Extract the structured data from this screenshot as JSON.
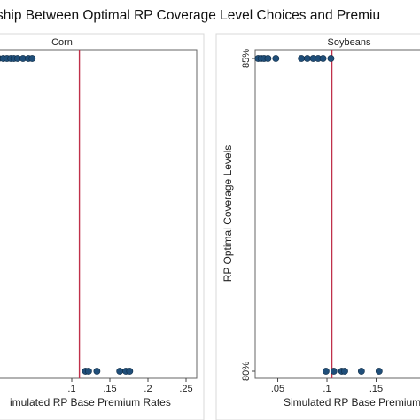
{
  "colors": {
    "point": "#1f4e79",
    "threshold_line": "#c0304a",
    "frame": "#666666"
  },
  "chart_data": {
    "type": "scatter",
    "title": "Relationship Between Optimal RP Coverage Level Choices and Premium Rates",
    "title_visible_text": "ship Between Optimal RP Coverage Level Choices and Premiu",
    "panels": [
      {
        "name": "Corn",
        "xlabel": "Simulated RP Base Premium Rates",
        "xlabel_visible_text": "imulated RP Base Premium Rates",
        "ylabel": "",
        "x_ticks": [
          ".1",
          ".15",
          ".2",
          ".25"
        ],
        "x_tick_values": [
          0.1,
          0.15,
          0.2,
          0.25
        ],
        "x_range": [
          0.0,
          0.25
        ],
        "y_ticks": [],
        "y_range": [
          79.5,
          85.5
        ],
        "threshold_x": 0.11,
        "points": [
          {
            "x": 0.004,
            "y": 85
          },
          {
            "x": 0.01,
            "y": 85
          },
          {
            "x": 0.015,
            "y": 85
          },
          {
            "x": 0.02,
            "y": 85
          },
          {
            "x": 0.024,
            "y": 85
          },
          {
            "x": 0.029,
            "y": 85
          },
          {
            "x": 0.036,
            "y": 85
          },
          {
            "x": 0.043,
            "y": 85
          },
          {
            "x": 0.048,
            "y": 85
          },
          {
            "x": 0.118,
            "y": 80
          },
          {
            "x": 0.122,
            "y": 80
          },
          {
            "x": 0.133,
            "y": 80
          },
          {
            "x": 0.163,
            "y": 80
          },
          {
            "x": 0.171,
            "y": 80
          },
          {
            "x": 0.176,
            "y": 80
          }
        ]
      },
      {
        "name": "Soybeans",
        "xlabel": "Simulated RP Base Premium Rates",
        "xlabel_visible_text": "Simulated RP Base Premium",
        "ylabel": "RP Optimal Coverage Levels",
        "x_ticks": [
          ".05",
          ".1",
          ".15"
        ],
        "x_tick_values": [
          0.05,
          0.1,
          0.15
        ],
        "x_range": [
          0.027,
          0.2
        ],
        "y_ticks": [
          "80%",
          "85%"
        ],
        "y_tick_values": [
          80,
          85
        ],
        "y_range": [
          79.5,
          85.5
        ],
        "threshold_x": 0.105,
        "points": [
          {
            "x": 0.03,
            "y": 85
          },
          {
            "x": 0.033,
            "y": 85
          },
          {
            "x": 0.036,
            "y": 85
          },
          {
            "x": 0.04,
            "y": 85
          },
          {
            "x": 0.048,
            "y": 85
          },
          {
            "x": 0.074,
            "y": 85
          },
          {
            "x": 0.08,
            "y": 85
          },
          {
            "x": 0.086,
            "y": 85
          },
          {
            "x": 0.091,
            "y": 85
          },
          {
            "x": 0.096,
            "y": 85
          },
          {
            "x": 0.104,
            "y": 85
          },
          {
            "x": 0.099,
            "y": 80
          },
          {
            "x": 0.107,
            "y": 80
          },
          {
            "x": 0.115,
            "y": 80
          },
          {
            "x": 0.118,
            "y": 80
          },
          {
            "x": 0.135,
            "y": 80
          },
          {
            "x": 0.153,
            "y": 80
          }
        ]
      }
    ]
  }
}
